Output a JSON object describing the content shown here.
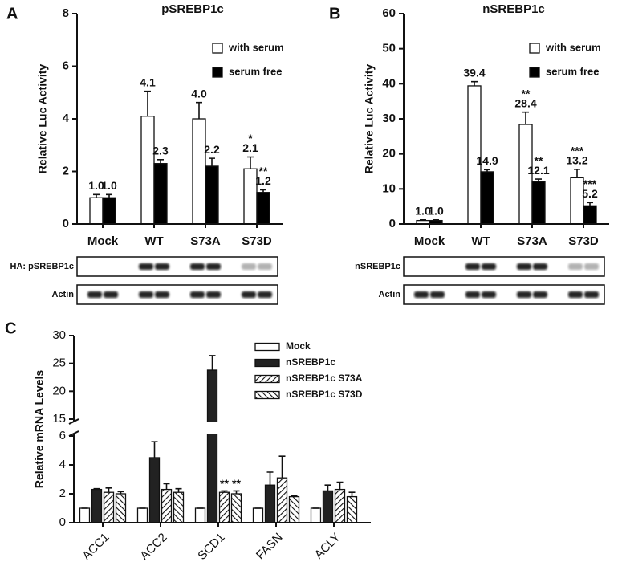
{
  "chart_data": [
    {
      "type": "bar",
      "panel_label": "A",
      "title": "pSREBP1c",
      "y_label": "Relative Luc Activity",
      "categories": [
        "Mock",
        "WT",
        "S73A",
        "S73D"
      ],
      "series": [
        {
          "name": "with serum",
          "color": "#ffffff",
          "values": [
            1.0,
            4.1,
            4.0,
            2.1
          ],
          "value_labels": [
            "1.0",
            "4.1",
            "4.0",
            "2.1"
          ],
          "errors": [
            0.12,
            0.95,
            0.62,
            0.45
          ],
          "significance": [
            null,
            null,
            null,
            "*"
          ]
        },
        {
          "name": "serum free",
          "color": "#000000",
          "values": [
            1.0,
            2.3,
            2.2,
            1.2
          ],
          "value_labels": [
            "1.0",
            "2.3",
            "2.2",
            "1.2"
          ],
          "errors": [
            0.12,
            0.15,
            0.3,
            0.1
          ],
          "significance": [
            null,
            null,
            null,
            "**"
          ]
        }
      ],
      "ylim": [
        0,
        8
      ],
      "yticks": [
        0,
        2,
        4,
        6,
        8
      ],
      "blot_labels": [
        "HA: pSREBP1c",
        "Actin"
      ]
    },
    {
      "type": "bar",
      "panel_label": "B",
      "title": "nSREBP1c",
      "y_label": "Relative Luc Activity",
      "categories": [
        "Mock",
        "WT",
        "S73A",
        "S73D"
      ],
      "series": [
        {
          "name": "with serum",
          "color": "#ffffff",
          "values": [
            1.0,
            39.4,
            28.4,
            13.2
          ],
          "value_labels": [
            "1.0",
            "39.4",
            "28.4",
            "13.2"
          ],
          "errors": [
            0.2,
            1.2,
            3.5,
            2.4
          ],
          "significance": [
            null,
            null,
            "**",
            "***"
          ]
        },
        {
          "name": "serum free",
          "color": "#000000",
          "values": [
            1.0,
            14.9,
            12.1,
            5.2
          ],
          "value_labels": [
            "1.0",
            "14.9",
            "12.1",
            "5.2"
          ],
          "errors": [
            0.2,
            0.6,
            0.7,
            0.9
          ],
          "significance": [
            null,
            null,
            "**",
            "***"
          ]
        }
      ],
      "ylim": [
        0,
        60
      ],
      "yticks": [
        0,
        10,
        20,
        30,
        40,
        50,
        60
      ],
      "blot_labels": [
        "nSREBP1c",
        "Actin"
      ]
    },
    {
      "type": "bar",
      "panel_label": "C",
      "y_label": "Relative mRNA Levels",
      "categories": [
        "ACC1",
        "ACC2",
        "SCD1",
        "FASN",
        "ACLY"
      ],
      "series": [
        {
          "name": "Mock",
          "color": "#ffffff",
          "values": [
            1.0,
            1.0,
            1.0,
            1.0,
            1.0
          ],
          "errors": [
            0,
            0,
            0,
            0,
            0
          ]
        },
        {
          "name": "nSREBP1c",
          "color": "#222222",
          "values": [
            2.3,
            4.5,
            23.8,
            2.6,
            2.2
          ],
          "errors": [
            0.05,
            1.1,
            2.6,
            0.9,
            0.4
          ]
        },
        {
          "name": "nSREBP1c S73A",
          "color": "#ffffff",
          "hatch": "forward",
          "values": [
            2.1,
            2.3,
            2.1,
            3.1,
            2.3
          ],
          "errors": [
            0.3,
            0.4,
            0.1,
            1.5,
            0.5
          ],
          "significance": [
            null,
            null,
            "**",
            null,
            null
          ]
        },
        {
          "name": "nSREBP1c S73D",
          "color": "#ffffff",
          "hatch": "backward",
          "values": [
            2.0,
            2.1,
            2.0,
            1.8,
            1.8
          ],
          "errors": [
            0.15,
            0.25,
            0.2,
            0.05,
            0.3
          ],
          "significance": [
            null,
            null,
            "**",
            null,
            null
          ]
        }
      ],
      "ylim": [
        0,
        30
      ],
      "ybreak": [
        6,
        15
      ],
      "yticks": [
        0,
        2,
        4,
        6,
        15,
        20,
        25,
        30
      ]
    }
  ]
}
